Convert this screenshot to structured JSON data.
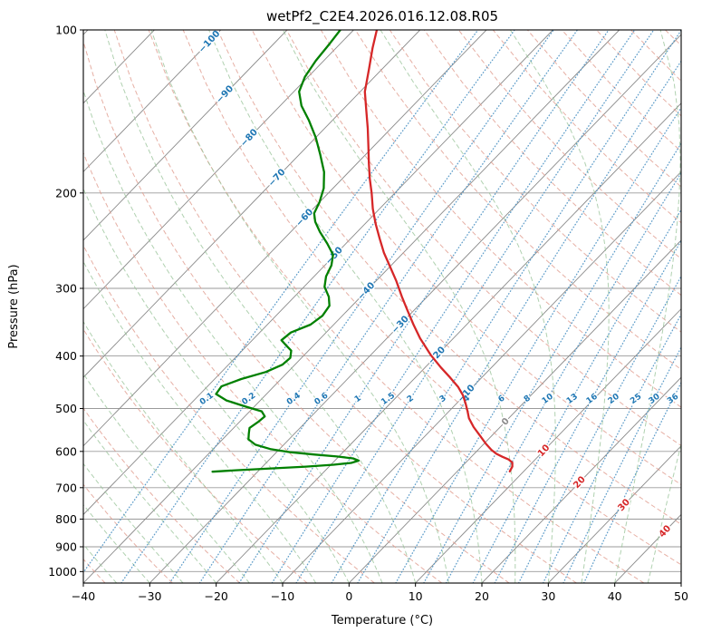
{
  "title": "wetPf2_C2E4.2026.016.12.08.R05",
  "axes": {
    "x_label": "Temperature (°C)",
    "y_label": "Pressure (hPa)",
    "x_tick_values": [
      -40,
      -30,
      -20,
      -10,
      0,
      10,
      20,
      30,
      40,
      50
    ],
    "x_tick_labels": [
      "−40",
      "−30",
      "−20",
      "−10",
      "0",
      "10",
      "20",
      "30",
      "40",
      "50"
    ],
    "y_tick_values": [
      100,
      200,
      300,
      400,
      500,
      600,
      700,
      800,
      900,
      1000
    ],
    "y_tick_labels": [
      "100",
      "200",
      "300",
      "400",
      "500",
      "600",
      "700",
      "800",
      "900",
      "1000"
    ],
    "pressure_range_hpa": [
      100,
      1050
    ],
    "temperature_range_c": [
      -40,
      50
    ],
    "y_scale": "log",
    "skewed": true
  },
  "colors": {
    "temperature": "#d62728",
    "dewpoint": "#008000",
    "isotherm": "#8a8a8a",
    "grid": "#9a9a9a",
    "dry_adiabat": "#e09b8d",
    "moist_adiabat": "#96c296",
    "mixing_ratio": "#4f94c4",
    "label_negative": "#1f77b4",
    "label_zero": "#8c8c8c",
    "label_positive": "#d62728",
    "spine": "#000000"
  },
  "background_lines": {
    "isotherms_c": {
      "start": -120,
      "end": 50,
      "step": 10
    },
    "isotherm_labels": [
      -100,
      -90,
      -80,
      -70,
      -60,
      -50,
      -40,
      -30,
      -20,
      -10,
      0,
      10,
      20,
      30,
      40
    ],
    "dry_adiabats_c": {
      "start": -40,
      "end": 200,
      "step": 10
    },
    "moist_adiabats_c": {
      "start": -60,
      "end": 50,
      "step": 5
    },
    "mixing_ratio_g_kg": [
      0.1,
      0.2,
      0.4,
      0.6,
      1,
      1.5,
      2,
      3,
      4,
      6,
      8,
      10,
      13,
      16,
      20,
      25,
      30,
      36
    ]
  },
  "chart_data": {
    "type": "line",
    "subtype": "skew-t-log-p",
    "title": "wetPf2_C2E4.2026.016.12.08.R05",
    "xlabel": "Temperature (°C)",
    "ylabel": "Pressure (hPa)",
    "x_range": [
      -40,
      50
    ],
    "y_range_hpa": [
      100,
      1050
    ],
    "grid": true,
    "legend": "none",
    "series": [
      {
        "name": "temperature",
        "color": "#d62728",
        "units": {
          "pressure": "hPa",
          "temperature": "degC"
        },
        "points": [
          [
            100,
            -76.5
          ],
          [
            108,
            -74.5
          ],
          [
            118,
            -72.0
          ],
          [
            130,
            -69.3
          ],
          [
            141,
            -66.3
          ],
          [
            152,
            -63.5
          ],
          [
            164,
            -60.8
          ],
          [
            176,
            -58.3
          ],
          [
            188,
            -55.9
          ],
          [
            200,
            -53.5
          ],
          [
            214,
            -51.0
          ],
          [
            228,
            -48.4
          ],
          [
            243,
            -45.6
          ],
          [
            258,
            -42.9
          ],
          [
            274,
            -39.9
          ],
          [
            291,
            -36.9
          ],
          [
            311,
            -33.8
          ],
          [
            330,
            -30.9
          ],
          [
            350,
            -28.0
          ],
          [
            371,
            -25.0
          ],
          [
            398,
            -21.0
          ],
          [
            420,
            -17.6
          ],
          [
            438,
            -14.8
          ],
          [
            456,
            -12.2
          ],
          [
            473,
            -10.2
          ],
          [
            490,
            -8.6
          ],
          [
            506,
            -7.2
          ],
          [
            521,
            -6.0
          ],
          [
            541,
            -4.0
          ],
          [
            561,
            -1.8
          ],
          [
            581,
            0.3
          ],
          [
            596,
            2.0
          ],
          [
            606,
            3.3
          ],
          [
            614,
            4.7
          ],
          [
            621,
            6.0
          ],
          [
            629,
            7.0
          ],
          [
            640,
            7.6
          ],
          [
            653,
            7.9
          ]
        ]
      },
      {
        "name": "dewpoint",
        "color": "#008000",
        "units": {
          "pressure": "hPa",
          "temperature": "degC"
        },
        "points": [
          [
            100,
            -82.0
          ],
          [
            106,
            -81.6
          ],
          [
            114,
            -81.2
          ],
          [
            122,
            -80.5
          ],
          [
            130,
            -79.2
          ],
          [
            138,
            -76.8
          ],
          [
            147,
            -73.5
          ],
          [
            158,
            -70.0
          ],
          [
            170,
            -66.8
          ],
          [
            183,
            -63.7
          ],
          [
            196,
            -61.4
          ],
          [
            208,
            -60.0
          ],
          [
            218,
            -59.2
          ],
          [
            226,
            -57.8
          ],
          [
            236,
            -55.6
          ],
          [
            248,
            -52.8
          ],
          [
            260,
            -50.3
          ],
          [
            272,
            -49.0
          ],
          [
            285,
            -48.2
          ],
          [
            298,
            -46.9
          ],
          [
            311,
            -44.8
          ],
          [
            323,
            -43.4
          ],
          [
            337,
            -43.0
          ],
          [
            350,
            -43.5
          ],
          [
            362,
            -45.3
          ],
          [
            374,
            -45.6
          ],
          [
            383,
            -44.0
          ],
          [
            391,
            -42.6
          ],
          [
            403,
            -41.7
          ],
          [
            415,
            -41.9
          ],
          [
            428,
            -43.3
          ],
          [
            441,
            -46.0
          ],
          [
            455,
            -47.9
          ],
          [
            470,
            -47.6
          ],
          [
            483,
            -45.1
          ],
          [
            495,
            -41.6
          ],
          [
            506,
            -38.2
          ],
          [
            517,
            -37.0
          ],
          [
            530,
            -37.2
          ],
          [
            543,
            -37.6
          ],
          [
            556,
            -36.9
          ],
          [
            570,
            -36.1
          ],
          [
            583,
            -34.3
          ],
          [
            594,
            -31.4
          ],
          [
            602,
            -27.9
          ],
          [
            608,
            -23.9
          ],
          [
            613,
            -20.3
          ],
          [
            618,
            -17.6
          ],
          [
            624,
            -16.4
          ],
          [
            630,
            -17.2
          ],
          [
            635,
            -19.6
          ],
          [
            640,
            -23.5
          ],
          [
            645,
            -28.5
          ],
          [
            650,
            -33.5
          ],
          [
            654,
            -36.8
          ]
        ]
      }
    ]
  }
}
